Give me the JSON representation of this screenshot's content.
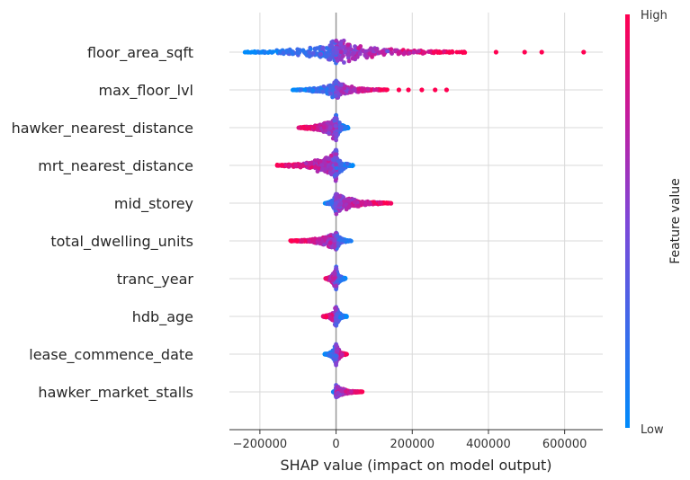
{
  "chart_data": {
    "type": "scatter",
    "subtype": "shap-beeswarm",
    "title": "",
    "xlabel": "SHAP value (impact on model output)",
    "xlim": [
      -280000,
      700000
    ],
    "xticks": [
      -200000,
      0,
      200000,
      400000,
      600000
    ],
    "xtick_labels": [
      "−200000",
      "0",
      "200000",
      "400000",
      "600000"
    ],
    "grid": true,
    "zero_line": true,
    "colorbar": {
      "title": "Feature value",
      "high_label": "High",
      "low_label": "Low",
      "low_color": "#008bfb",
      "high_color": "#ff0051"
    },
    "features": [
      {
        "name": "floor_area_sqft",
        "min": -240000,
        "max": 340000,
        "outliers": [
          420000,
          495000,
          540000,
          650000
        ],
        "high_side": "right",
        "max_width": 16
      },
      {
        "name": "max_floor_lvl",
        "min": -115000,
        "max": 135000,
        "outliers": [
          165000,
          190000,
          225000,
          260000,
          290000
        ],
        "high_side": "right",
        "max_width": 11
      },
      {
        "name": "hawker_nearest_distance",
        "min": -100000,
        "max": 35000,
        "outliers": [],
        "high_side": "left",
        "max_width": 16
      },
      {
        "name": "mrt_nearest_distance",
        "min": -155000,
        "max": 45000,
        "outliers": [],
        "high_side": "left",
        "max_width": 19
      },
      {
        "name": "mid_storey",
        "min": -30000,
        "max": 145000,
        "outliers": [],
        "high_side": "right",
        "max_width": 14
      },
      {
        "name": "total_dwelling_units",
        "min": -120000,
        "max": 40000,
        "outliers": [],
        "high_side": "left",
        "max_width": 12
      },
      {
        "name": "tranc_year",
        "min": -28000,
        "max": 25000,
        "outliers": [],
        "high_side": "left",
        "max_width": 15
      },
      {
        "name": "hdb_age",
        "min": -35000,
        "max": 28000,
        "outliers": [],
        "high_side": "left",
        "max_width": 13
      },
      {
        "name": "lease_commence_date",
        "min": -30000,
        "max": 28000,
        "outliers": [],
        "high_side": "right",
        "max_width": 13
      },
      {
        "name": "hawker_market_stalls",
        "min": -8000,
        "max": 70000,
        "outliers": [],
        "high_side": "right",
        "max_width": 8
      }
    ]
  }
}
